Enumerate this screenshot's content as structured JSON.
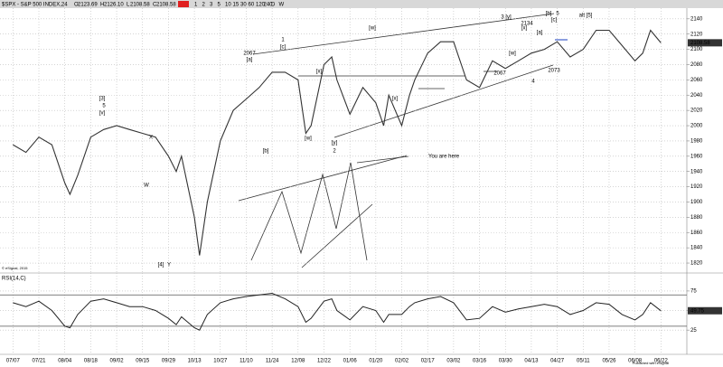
{
  "toolbar": {
    "symbol": "$SPX - S&P 500 INDEX,24",
    "ohlc": [
      "2123.69",
      "2126.10",
      "2108.58",
      "2108.58"
    ],
    "intervals": [
      "1",
      "2",
      "3",
      "5",
      "10",
      "15",
      "30",
      "60",
      "120",
      "240",
      "D",
      "W"
    ]
  },
  "chart_data": [
    {
      "type": "line",
      "color": "#333333",
      "x": [
        0,
        0.5,
        1,
        1.5,
        2,
        2.2,
        2.5,
        3,
        3.5,
        4,
        4.5,
        5,
        5.5,
        6,
        6.3,
        6.5,
        7,
        7.2,
        7.5,
        8,
        8.5,
        9,
        9.5,
        10,
        10.5,
        11,
        11.3,
        11.5,
        12,
        12.3,
        12.5,
        13,
        13.5,
        14,
        14.3,
        14.5,
        15,
        15.3,
        15.5,
        16,
        16.5,
        17,
        17.5,
        18,
        18.5,
        19,
        19.5,
        20,
        20.5,
        21,
        21.5,
        22,
        22.5,
        23,
        23.5,
        24,
        24.3,
        24.6,
        25
      ],
      "values": [
        1975,
        1965,
        1985,
        1975,
        1925,
        1910,
        1935,
        1985,
        1995,
        2000,
        1995,
        1990,
        1985,
        1960,
        1940,
        1960,
        1880,
        1830,
        1900,
        1980,
        2020,
        2035,
        2050,
        2070,
        2070,
        2060,
        1990,
        2000,
        2080,
        2090,
        2060,
        2015,
        2050,
        2030,
        2000,
        2040,
        2000,
        2040,
        2060,
        2095,
        2110,
        2110,
        2060,
        2050,
        2085,
        2075,
        2085,
        2095,
        2100,
        2110,
        2090,
        2100,
        2125,
        2125,
        2105,
        2085,
        2095,
        2125,
        2108.58
      ],
      "xlim": [
        -0.5,
        26
      ],
      "ylim": [
        1807,
        2154
      ],
      "yticks": [
        1820,
        1840,
        1860,
        1880,
        1900,
        1920,
        1940,
        1960,
        1980,
        2000,
        2020,
        2040,
        2060,
        2080,
        2100,
        2120,
        2140
      ],
      "annotations": [
        "[3]",
        "5",
        "[v]",
        "X",
        "W",
        "[4]",
        "Y",
        "2067",
        "[a]",
        "1",
        "[c]",
        "[b]",
        "[x]",
        "[w]",
        "[y]",
        "2",
        "[w]",
        "[x]",
        "2067",
        "3 [y]",
        "2134",
        "[x]",
        "[w]",
        "[a]",
        "[b]",
        "5",
        "[c]",
        "4",
        "2073",
        "alt [5]",
        "You are here"
      ],
      "credit": "© eSignal, 2015"
    },
    {
      "type": "line",
      "title": "RSI(14,C)",
      "color": "#222222",
      "x": [
        0,
        0.5,
        1,
        1.5,
        2,
        2.2,
        2.5,
        3,
        3.5,
        4,
        4.5,
        5,
        5.5,
        6,
        6.3,
        6.5,
        7,
        7.2,
        7.5,
        8,
        8.5,
        9,
        9.5,
        10,
        10.5,
        11,
        11.3,
        11.5,
        12,
        12.3,
        12.5,
        13,
        13.5,
        14,
        14.3,
        14.5,
        15,
        15.3,
        15.5,
        16,
        16.5,
        17,
        17.5,
        18,
        18.5,
        19,
        19.5,
        20,
        20.5,
        21,
        21.5,
        22,
        22.5,
        23,
        23.5,
        24,
        24.3,
        24.6,
        25
      ],
      "values": [
        60,
        55,
        62,
        50,
        30,
        28,
        45,
        62,
        65,
        60,
        55,
        55,
        50,
        40,
        32,
        42,
        28,
        25,
        45,
        60,
        65,
        68,
        70,
        72,
        65,
        55,
        35,
        40,
        62,
        65,
        50,
        38,
        55,
        50,
        35,
        45,
        45,
        55,
        60,
        65,
        68,
        60,
        38,
        40,
        55,
        48,
        52,
        55,
        58,
        55,
        45,
        50,
        60,
        58,
        45,
        38,
        45,
        60,
        49.75
      ],
      "xlim": [
        -0.5,
        26
      ],
      "ylim": [
        -6,
        98
      ],
      "yticks": [
        25,
        50,
        75
      ],
      "levels": [
        70,
        30
      ],
      "xticks": [
        {
          "value": 0,
          "label": "07/07"
        },
        {
          "value": 1,
          "label": "07/21"
        },
        {
          "value": 2,
          "label": "08/04"
        },
        {
          "value": 3,
          "label": "08/18"
        },
        {
          "value": 4,
          "label": "09/02"
        },
        {
          "value": 5,
          "label": "09/15"
        },
        {
          "value": 6,
          "label": "09/29"
        },
        {
          "value": 7,
          "label": "10/13"
        },
        {
          "value": 8,
          "label": "10/27"
        },
        {
          "value": 9,
          "label": "11/10"
        },
        {
          "value": 10,
          "label": "11/24"
        },
        {
          "value": 11,
          "label": "12/08"
        },
        {
          "value": 12,
          "label": "12/22"
        },
        {
          "value": 13,
          "label": "01/06"
        },
        {
          "value": 14,
          "label": "01/20"
        },
        {
          "value": 15,
          "label": "02/02"
        },
        {
          "value": 16,
          "label": "02/17"
        },
        {
          "value": 17,
          "label": "03/02"
        },
        {
          "value": 18,
          "label": "03/16"
        },
        {
          "value": 19,
          "label": "03/30"
        },
        {
          "value": 20,
          "label": "04/13"
        },
        {
          "value": 21,
          "label": "04/27"
        },
        {
          "value": 22,
          "label": "05/11"
        },
        {
          "value": 23,
          "label": "05/26"
        },
        {
          "value": 24,
          "label": "06/08"
        },
        {
          "value": 25,
          "label": "06/22"
        }
      ],
      "credit": "Published with eSignal"
    }
  ]
}
